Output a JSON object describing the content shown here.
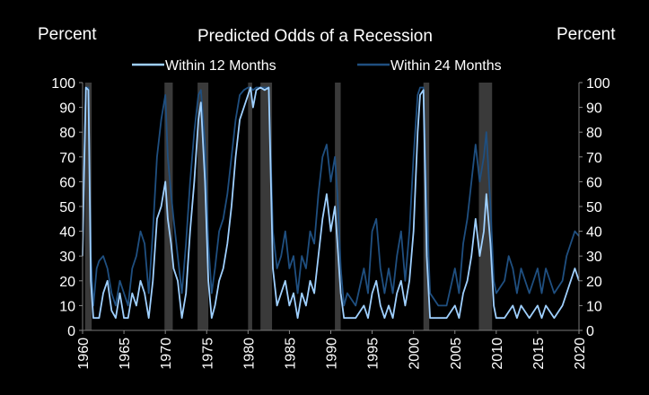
{
  "chart_data": {
    "type": "line",
    "title": "Predicted Odds of a Recession",
    "ylabel_left": "Percent",
    "ylabel_right": "Percent",
    "xlim": [
      1960,
      2020
    ],
    "ylim": [
      0,
      100
    ],
    "y_ticks": [
      0,
      10,
      20,
      30,
      40,
      50,
      60,
      70,
      80,
      90,
      100
    ],
    "x_ticks": [
      1960,
      1965,
      1970,
      1975,
      1980,
      1985,
      1990,
      1995,
      2000,
      2005,
      2010,
      2015,
      2020
    ],
    "recessions": [
      [
        1960.3,
        1961.1
      ],
      [
        1969.9,
        1970.9
      ],
      [
        1973.9,
        1975.2
      ],
      [
        1980.0,
        1980.5
      ],
      [
        1981.5,
        1982.9
      ],
      [
        1990.5,
        1991.2
      ],
      [
        2001.2,
        2001.9
      ],
      [
        2007.9,
        2009.5
      ]
    ],
    "legend": {
      "items": [
        "Within 12 Months",
        "Within 24 Months"
      ]
    },
    "series": [
      {
        "name": "Within 12 Months",
        "color": "#9fd0ff",
        "points": [
          [
            1960.0,
            30
          ],
          [
            1960.2,
            65
          ],
          [
            1960.4,
            98
          ],
          [
            1960.7,
            97
          ],
          [
            1961.0,
            20
          ],
          [
            1961.3,
            5
          ],
          [
            1962.0,
            5
          ],
          [
            1962.5,
            15
          ],
          [
            1963.0,
            20
          ],
          [
            1963.5,
            8
          ],
          [
            1964.0,
            5
          ],
          [
            1964.5,
            15
          ],
          [
            1965.0,
            5
          ],
          [
            1965.5,
            5
          ],
          [
            1966.0,
            15
          ],
          [
            1966.5,
            10
          ],
          [
            1967.0,
            20
          ],
          [
            1967.5,
            15
          ],
          [
            1968.0,
            5
          ],
          [
            1968.5,
            20
          ],
          [
            1969.0,
            45
          ],
          [
            1969.5,
            50
          ],
          [
            1970.0,
            60
          ],
          [
            1970.3,
            45
          ],
          [
            1970.7,
            35
          ],
          [
            1971.0,
            25
          ],
          [
            1971.5,
            20
          ],
          [
            1972.0,
            5
          ],
          [
            1972.5,
            15
          ],
          [
            1973.0,
            40
          ],
          [
            1973.5,
            60
          ],
          [
            1974.0,
            85
          ],
          [
            1974.3,
            92
          ],
          [
            1974.8,
            60
          ],
          [
            1975.2,
            20
          ],
          [
            1975.6,
            5
          ],
          [
            1976.0,
            10
          ],
          [
            1976.5,
            20
          ],
          [
            1977.0,
            25
          ],
          [
            1977.5,
            35
          ],
          [
            1978.0,
            50
          ],
          [
            1978.5,
            70
          ],
          [
            1979.0,
            85
          ],
          [
            1979.5,
            90
          ],
          [
            1980.0,
            95
          ],
          [
            1980.3,
            98
          ],
          [
            1980.6,
            90
          ],
          [
            1981.0,
            97
          ],
          [
            1981.5,
            98
          ],
          [
            1982.0,
            97
          ],
          [
            1982.5,
            98
          ],
          [
            1983.0,
            25
          ],
          [
            1983.5,
            10
          ],
          [
            1984.0,
            15
          ],
          [
            1984.5,
            20
          ],
          [
            1985.0,
            10
          ],
          [
            1985.5,
            15
          ],
          [
            1986.0,
            5
          ],
          [
            1986.5,
            15
          ],
          [
            1987.0,
            10
          ],
          [
            1987.5,
            20
          ],
          [
            1988.0,
            15
          ],
          [
            1988.5,
            30
          ],
          [
            1989.0,
            45
          ],
          [
            1989.5,
            55
          ],
          [
            1990.0,
            40
          ],
          [
            1990.5,
            50
          ],
          [
            1990.8,
            35
          ],
          [
            1991.2,
            15
          ],
          [
            1991.6,
            5
          ],
          [
            1992.0,
            5
          ],
          [
            1993.0,
            5
          ],
          [
            1994.0,
            10
          ],
          [
            1994.5,
            5
          ],
          [
            1995.0,
            15
          ],
          [
            1995.5,
            20
          ],
          [
            1996.0,
            10
          ],
          [
            1996.5,
            5
          ],
          [
            1997.0,
            10
          ],
          [
            1997.5,
            5
          ],
          [
            1998.0,
            15
          ],
          [
            1998.5,
            20
          ],
          [
            1999.0,
            10
          ],
          [
            1999.5,
            20
          ],
          [
            2000.0,
            40
          ],
          [
            2000.5,
            80
          ],
          [
            2000.8,
            95
          ],
          [
            2001.2,
            97
          ],
          [
            2001.6,
            30
          ],
          [
            2002.0,
            5
          ],
          [
            2003.0,
            5
          ],
          [
            2004.0,
            5
          ],
          [
            2005.0,
            10
          ],
          [
            2005.5,
            5
          ],
          [
            2006.0,
            15
          ],
          [
            2006.5,
            20
          ],
          [
            2007.0,
            30
          ],
          [
            2007.5,
            45
          ],
          [
            2008.0,
            30
          ],
          [
            2008.5,
            40
          ],
          [
            2008.8,
            55
          ],
          [
            2009.3,
            35
          ],
          [
            2009.7,
            10
          ],
          [
            2010.0,
            5
          ],
          [
            2011.0,
            5
          ],
          [
            2012.0,
            10
          ],
          [
            2012.5,
            5
          ],
          [
            2013.0,
            10
          ],
          [
            2014.0,
            5
          ],
          [
            2015.0,
            10
          ],
          [
            2015.5,
            5
          ],
          [
            2016.0,
            10
          ],
          [
            2017.0,
            5
          ],
          [
            2018.0,
            10
          ],
          [
            2018.5,
            15
          ],
          [
            2019.0,
            20
          ],
          [
            2019.5,
            25
          ],
          [
            2020.0,
            20
          ]
        ]
      },
      {
        "name": "Within 24 Months",
        "color": "#1f4f80",
        "points": [
          [
            1960.0,
            40
          ],
          [
            1960.2,
            70
          ],
          [
            1960.4,
            98
          ],
          [
            1960.7,
            98
          ],
          [
            1961.0,
            30
          ],
          [
            1961.3,
            10
          ],
          [
            1961.7,
            25
          ],
          [
            1962.0,
            28
          ],
          [
            1962.5,
            30
          ],
          [
            1963.0,
            25
          ],
          [
            1963.5,
            15
          ],
          [
            1964.0,
            10
          ],
          [
            1964.5,
            20
          ],
          [
            1965.0,
            15
          ],
          [
            1965.5,
            10
          ],
          [
            1966.0,
            25
          ],
          [
            1966.5,
            30
          ],
          [
            1967.0,
            40
          ],
          [
            1967.5,
            35
          ],
          [
            1968.0,
            15
          ],
          [
            1968.5,
            40
          ],
          [
            1969.0,
            70
          ],
          [
            1969.5,
            85
          ],
          [
            1970.0,
            95
          ],
          [
            1970.3,
            70
          ],
          [
            1970.7,
            55
          ],
          [
            1971.0,
            45
          ],
          [
            1971.5,
            30
          ],
          [
            1972.0,
            15
          ],
          [
            1972.5,
            35
          ],
          [
            1973.0,
            60
          ],
          [
            1973.5,
            80
          ],
          [
            1974.0,
            95
          ],
          [
            1974.3,
            97
          ],
          [
            1974.8,
            75
          ],
          [
            1975.2,
            35
          ],
          [
            1975.6,
            15
          ],
          [
            1976.0,
            25
          ],
          [
            1976.5,
            40
          ],
          [
            1977.0,
            45
          ],
          [
            1977.5,
            55
          ],
          [
            1978.0,
            70
          ],
          [
            1978.5,
            85
          ],
          [
            1979.0,
            95
          ],
          [
            1979.5,
            97
          ],
          [
            1980.0,
            98
          ],
          [
            1980.3,
            98
          ],
          [
            1980.6,
            97
          ],
          [
            1981.0,
            98
          ],
          [
            1981.5,
            98
          ],
          [
            1982.0,
            98
          ],
          [
            1982.5,
            98
          ],
          [
            1983.0,
            40
          ],
          [
            1983.5,
            25
          ],
          [
            1984.0,
            30
          ],
          [
            1984.5,
            40
          ],
          [
            1985.0,
            25
          ],
          [
            1985.5,
            30
          ],
          [
            1986.0,
            15
          ],
          [
            1986.5,
            30
          ],
          [
            1987.0,
            25
          ],
          [
            1987.5,
            40
          ],
          [
            1988.0,
            35
          ],
          [
            1988.5,
            55
          ],
          [
            1989.0,
            70
          ],
          [
            1989.5,
            75
          ],
          [
            1990.0,
            60
          ],
          [
            1990.5,
            70
          ],
          [
            1990.8,
            55
          ],
          [
            1991.2,
            25
          ],
          [
            1991.6,
            10
          ],
          [
            1992.0,
            15
          ],
          [
            1993.0,
            10
          ],
          [
            1994.0,
            25
          ],
          [
            1994.5,
            15
          ],
          [
            1995.0,
            40
          ],
          [
            1995.5,
            45
          ],
          [
            1996.0,
            25
          ],
          [
            1996.5,
            15
          ],
          [
            1997.0,
            25
          ],
          [
            1997.5,
            15
          ],
          [
            1998.0,
            30
          ],
          [
            1998.5,
            40
          ],
          [
            1999.0,
            20
          ],
          [
            1999.5,
            40
          ],
          [
            2000.0,
            70
          ],
          [
            2000.5,
            95
          ],
          [
            2000.8,
            98
          ],
          [
            2001.2,
            98
          ],
          [
            2001.6,
            50
          ],
          [
            2002.0,
            15
          ],
          [
            2003.0,
            10
          ],
          [
            2004.0,
            10
          ],
          [
            2005.0,
            25
          ],
          [
            2005.5,
            15
          ],
          [
            2006.0,
            35
          ],
          [
            2006.5,
            45
          ],
          [
            2007.0,
            60
          ],
          [
            2007.5,
            75
          ],
          [
            2008.0,
            60
          ],
          [
            2008.5,
            70
          ],
          [
            2008.8,
            80
          ],
          [
            2009.3,
            50
          ],
          [
            2009.7,
            20
          ],
          [
            2010.0,
            15
          ],
          [
            2011.0,
            20
          ],
          [
            2011.5,
            30
          ],
          [
            2012.0,
            25
          ],
          [
            2012.5,
            15
          ],
          [
            2013.0,
            25
          ],
          [
            2014.0,
            15
          ],
          [
            2015.0,
            25
          ],
          [
            2015.5,
            15
          ],
          [
            2016.0,
            25
          ],
          [
            2017.0,
            15
          ],
          [
            2018.0,
            20
          ],
          [
            2018.5,
            30
          ],
          [
            2019.0,
            35
          ],
          [
            2019.5,
            40
          ],
          [
            2020.0,
            38
          ]
        ]
      }
    ]
  }
}
